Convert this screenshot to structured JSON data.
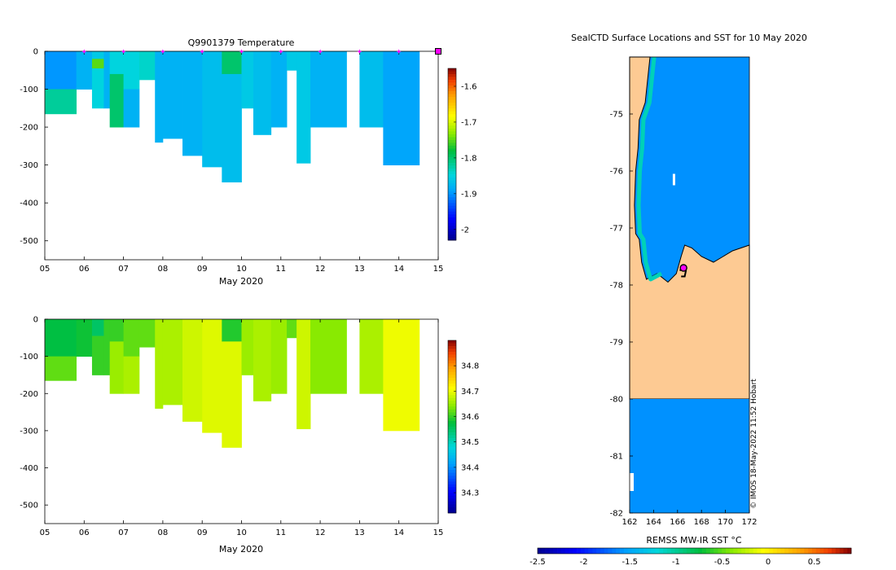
{
  "figure": {
    "credit": "© IMOS 18-May-2022 11:52 Hobart"
  },
  "chart_data": [
    {
      "type": "heatmap",
      "name": "temperature-section",
      "title": "Q9901379  Temperature",
      "xlabel": "May 2020",
      "x_tick_labels": [
        "05",
        "06",
        "07",
        "08",
        "09",
        "10",
        "11",
        "12",
        "13",
        "14",
        "15"
      ],
      "xlim": [
        5,
        15
      ],
      "ylim": [
        -550,
        0
      ],
      "y_ticks": [
        0,
        -100,
        -200,
        -300,
        -400,
        -500
      ],
      "colorbar": {
        "min": -2.03,
        "max": -1.55,
        "ticks": [
          -1.6,
          -1.7,
          -1.8,
          -1.9,
          -2
        ],
        "tick_labels": [
          "-1.6",
          "-1.7",
          "-1.8",
          "-1.9",
          "-2"
        ]
      },
      "profile_markers_x": [
        6,
        7,
        8,
        9,
        10,
        11,
        12,
        13,
        14
      ],
      "latest_marker_x": 15,
      "cells": [
        [
          5.0,
          0,
          100,
          -1.9
        ],
        [
          5.0,
          100,
          165,
          -1.82
        ],
        [
          5.8,
          0,
          100,
          -1.88
        ],
        [
          6.2,
          0,
          20,
          -1.86
        ],
        [
          6.2,
          20,
          45,
          -1.75
        ],
        [
          6.2,
          45,
          150,
          -1.85
        ],
        [
          6.5,
          0,
          150,
          -1.88
        ],
        [
          6.65,
          0,
          60,
          -1.85
        ],
        [
          6.65,
          60,
          200,
          -1.8
        ],
        [
          7.0,
          0,
          100,
          -1.85
        ],
        [
          7.0,
          100,
          200,
          -1.88
        ],
        [
          7.4,
          0,
          75,
          -1.84
        ],
        [
          7.8,
          0,
          240,
          -1.88
        ],
        [
          8.0,
          0,
          230,
          -1.88
        ],
        [
          8.5,
          0,
          275,
          -1.88
        ],
        [
          9.0,
          0,
          305,
          -1.87
        ],
        [
          9.5,
          0,
          60,
          -1.8
        ],
        [
          9.5,
          60,
          345,
          -1.87
        ],
        [
          10.0,
          0,
          150,
          -1.86
        ],
        [
          10.3,
          0,
          220,
          -1.87
        ],
        [
          10.75,
          0,
          200,
          -1.88
        ],
        [
          11.15,
          0,
          50,
          -1.86
        ],
        [
          11.4,
          0,
          295,
          -1.86
        ],
        [
          11.75,
          0,
          200,
          -1.88
        ],
        [
          13.0,
          0,
          200,
          -1.87
        ],
        [
          13.6,
          0,
          300,
          -1.89
        ]
      ]
    },
    {
      "type": "heatmap",
      "name": "salinity-section",
      "title": "",
      "xlabel": "May 2020",
      "x_tick_labels": [
        "05",
        "06",
        "07",
        "08",
        "09",
        "10",
        "11",
        "12",
        "13",
        "14",
        "15"
      ],
      "xlim": [
        5,
        15
      ],
      "ylim": [
        -550,
        0
      ],
      "y_ticks": [
        0,
        -100,
        -200,
        -300,
        -400,
        -500
      ],
      "colorbar": {
        "min": 34.22,
        "max": 34.9,
        "ticks": [
          34.8,
          34.7,
          34.6,
          34.5,
          34.4,
          34.3
        ],
        "tick_labels": [
          "34.8",
          "34.7",
          "34.6",
          "34.5",
          "34.4",
          "34.3"
        ]
      },
      "cells": [
        [
          5.0,
          0,
          100,
          34.57
        ],
        [
          5.0,
          100,
          165,
          34.62
        ],
        [
          5.8,
          0,
          100,
          34.58
        ],
        [
          6.2,
          0,
          20,
          34.55
        ],
        [
          6.2,
          20,
          45,
          34.55
        ],
        [
          6.2,
          45,
          150,
          34.6
        ],
        [
          6.5,
          0,
          150,
          34.6
        ],
        [
          6.65,
          0,
          60,
          34.6
        ],
        [
          6.65,
          60,
          200,
          34.65
        ],
        [
          7.0,
          0,
          100,
          34.62
        ],
        [
          7.0,
          100,
          200,
          34.66
        ],
        [
          7.4,
          0,
          75,
          34.62
        ],
        [
          7.8,
          0,
          240,
          34.66
        ],
        [
          8.0,
          0,
          230,
          34.66
        ],
        [
          8.5,
          0,
          275,
          34.68
        ],
        [
          9.0,
          0,
          305,
          34.69
        ],
        [
          9.5,
          0,
          60,
          34.59
        ],
        [
          9.5,
          60,
          345,
          34.69
        ],
        [
          10.0,
          0,
          150,
          34.65
        ],
        [
          10.3,
          0,
          220,
          34.66
        ],
        [
          10.75,
          0,
          200,
          34.65
        ],
        [
          11.15,
          0,
          50,
          34.62
        ],
        [
          11.4,
          0,
          295,
          34.68
        ],
        [
          11.75,
          0,
          200,
          34.64
        ],
        [
          13.0,
          0,
          200,
          34.66
        ],
        [
          13.6,
          0,
          300,
          34.7
        ]
      ]
    },
    {
      "type": "heatmap",
      "name": "sst-map",
      "title": "SealCTD Surface Locations and SST for 10 May 2020",
      "xlabel": "REMSS MW-IR SST °C",
      "xlim": [
        162,
        172
      ],
      "ylim": [
        -82,
        -74
      ],
      "x_ticks": [
        162,
        164,
        166,
        168,
        170,
        172
      ],
      "y_ticks": [
        -75,
        -76,
        -77,
        -78,
        -79,
        -80,
        -81,
        -82
      ],
      "colorbar": {
        "min": -2.5,
        "max": 0.9,
        "ticks": [
          -2.5,
          -2,
          -1.5,
          -1,
          -0.5,
          0,
          0.5
        ],
        "tick_labels": [
          "-2.5",
          "-2",
          "-1.5",
          "-1",
          "-0.5",
          "0",
          "0.5"
        ]
      },
      "ocean_sst": -1.6,
      "coast_sst": -1.1,
      "regions": [
        {
          "kind": "land",
          "lonlat": [
            [
              162,
              -74
            ],
            [
              163.7,
              -74
            ],
            [
              163.3,
              -74.8
            ],
            [
              162.8,
              -75.1
            ],
            [
              162.7,
              -75.6
            ],
            [
              162.5,
              -76.0
            ],
            [
              162.4,
              -76.6
            ],
            [
              162.5,
              -77.1
            ],
            [
              162.8,
              -77.2
            ],
            [
              163.0,
              -77.6
            ],
            [
              163.4,
              -77.9
            ],
            [
              164.3,
              -77.8
            ],
            [
              165.2,
              -77.95
            ],
            [
              165.9,
              -77.8
            ],
            [
              166.3,
              -77.5
            ],
            [
              166.6,
              -77.3
            ],
            [
              167.2,
              -77.35
            ],
            [
              168.0,
              -77.5
            ],
            [
              169.0,
              -77.6
            ],
            [
              169.8,
              -77.5
            ],
            [
              170.6,
              -77.4
            ],
            [
              172,
              -77.3
            ],
            [
              172,
              -80
            ],
            [
              162,
              -80
            ]
          ]
        },
        {
          "kind": "ocean",
          "lonlat": [
            [
              162,
              -80
            ],
            [
              172,
              -80
            ],
            [
              172,
              -82
            ],
            [
              162,
              -82
            ]
          ]
        }
      ],
      "track_lonlat": [
        [
          166.2,
          -77.75
        ],
        [
          166.4,
          -77.7
        ],
        [
          166.5,
          -77.7
        ],
        [
          166.6,
          -77.7
        ],
        [
          166.7,
          -77.75
        ],
        [
          166.6,
          -77.85
        ],
        [
          166.3,
          -77.85
        ]
      ],
      "latest_position": [
        166.5,
        -77.7
      ]
    }
  ]
}
